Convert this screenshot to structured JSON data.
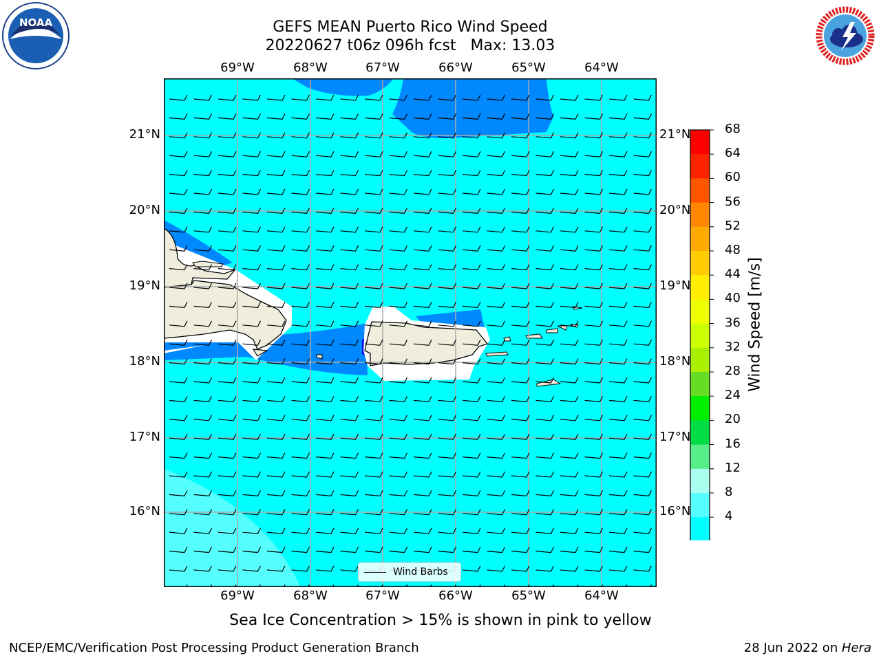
{
  "title_line1": "GEFS MEAN Puerto Rico Wind Speed",
  "title_line2": "20220627 t06z 096h fcst   Max: 13.03",
  "lon_labels": [
    "69°W",
    "68°W",
    "67°W",
    "66°W",
    "65°W",
    "64°W"
  ],
  "lat_labels": [
    "21°N",
    "20°N",
    "19°N",
    "18°N",
    "17°N",
    "16°N"
  ],
  "colorbar": {
    "title": "Wind Speed [m/s]",
    "ticks": [
      "68",
      "64",
      "60",
      "56",
      "52",
      "48",
      "44",
      "40",
      "36",
      "32",
      "28",
      "24",
      "20",
      "16",
      "12",
      "8",
      "4"
    ],
    "colors": [
      "#ff0000",
      "#ff2200",
      "#ff5500",
      "#ff8800",
      "#ffaa00",
      "#ffcc00",
      "#ffee00",
      "#eeff00",
      "#ccff00",
      "#aaee00",
      "#66dd22",
      "#00ee00",
      "#00dd44",
      "#55ee88",
      "#aaffee",
      "#55ffff",
      "#00ffff",
      "#0088ff",
      "#0000ee"
    ]
  },
  "legend_label": "Wind Barbs",
  "note": "Sea Ice Concentration > 15% is shown in pink to yellow",
  "footer_left": "NCEP/EMC/Verification Post Processing Product Generation Branch",
  "footer_date": "28 Jun 2022 on ",
  "footer_machine": "Hera",
  "logos": {
    "left": {
      "name": "noaa-logo",
      "text": "NOAA"
    },
    "right": {
      "name": "nws-logo",
      "text": "NATIONAL WEATHER SERVICE"
    }
  },
  "map_colors": {
    "ocean": "#00ffff",
    "band_4_8": "#0088ff",
    "band_lt4": "#0000ee",
    "band_12_16": "#55ffff",
    "land": "#efeedd",
    "nodata": "#ffffff"
  }
}
